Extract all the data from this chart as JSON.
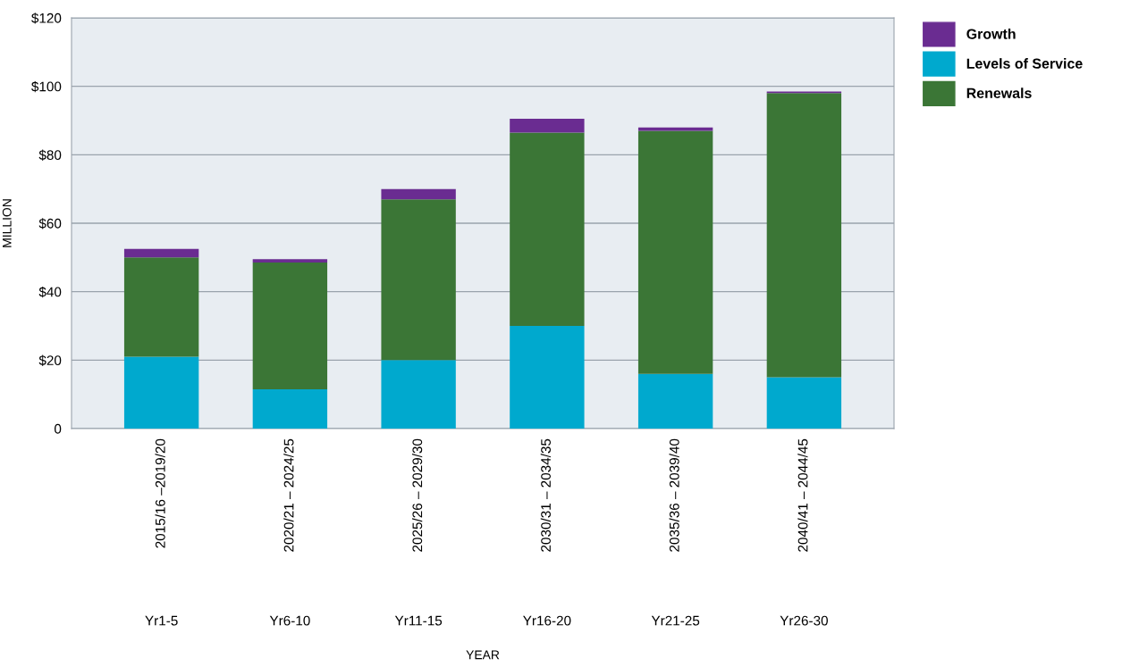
{
  "chart_data": {
    "type": "bar",
    "stacked": true,
    "ylabel": "MILLION",
    "categories": [
      "2015/16 –2019/20",
      "2020/21 – 2024/25",
      "2025/26 – 2029/30",
      "2030/31 – 2034/35",
      "2035/36 – 2039/40",
      "2040/41 – 2044/45"
    ],
    "series": [
      {
        "name": "Levels of Service",
        "color": "#00a9ce",
        "values": [
          21,
          11.5,
          20,
          30,
          16,
          15
        ]
      },
      {
        "name": "Renewals",
        "color": "#3b7636",
        "values": [
          29,
          37,
          47,
          56.5,
          71,
          83
        ]
      },
      {
        "name": "Growth",
        "color": "#6a2c91",
        "values": [
          2.5,
          1,
          3,
          4,
          1,
          0.5
        ]
      }
    ],
    "ylim": [
      0,
      120
    ],
    "yticks": [
      {
        "value": 0,
        "label": "0"
      },
      {
        "value": 20,
        "label": "$20"
      },
      {
        "value": 40,
        "label": "$40"
      },
      {
        "value": 60,
        "label": "$60"
      },
      {
        "value": 80,
        "label": "$80"
      },
      {
        "value": 100,
        "label": "$100"
      },
      {
        "value": 120,
        "label": "$120"
      }
    ],
    "grid": "y",
    "legend": "top right",
    "annotations": [
      "Yr1-5",
      "Yr6-10",
      "Yr11-15",
      "Yr16-20",
      "Yr21-25",
      "Yr26-30",
      "YEAR"
    ]
  }
}
